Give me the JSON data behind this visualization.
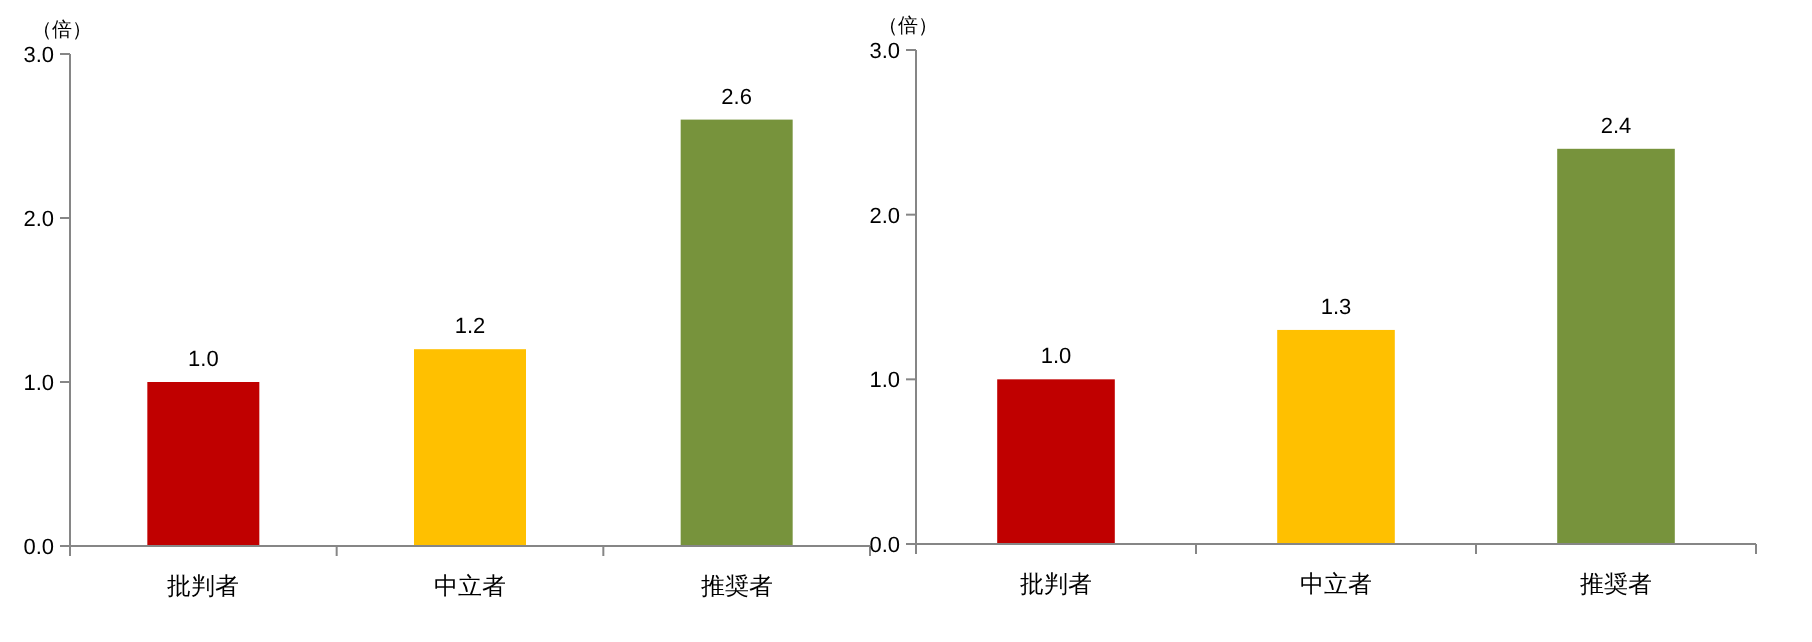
{
  "chart_data": [
    {
      "type": "bar",
      "ylabel": "（倍）",
      "categories": [
        "批判者",
        "中立者",
        "推奨者"
      ],
      "series": [
        {
          "values": [
            1.0,
            1.2,
            2.6
          ],
          "value_labels": [
            "1.0",
            "1.2",
            "2.6"
          ],
          "colors": [
            "#c00000",
            "#ffc000",
            "#77933c"
          ]
        }
      ],
      "ylim": [
        0,
        3
      ],
      "yticks": [
        {
          "value": 0,
          "label": "0.0"
        },
        {
          "value": 1,
          "label": "1.0"
        },
        {
          "value": 2,
          "label": "2.0"
        },
        {
          "value": 3,
          "label": "3.0"
        }
      ],
      "grid": false
    },
    {
      "type": "bar",
      "ylabel": "（倍）",
      "categories": [
        "批判者",
        "中立者",
        "推奨者"
      ],
      "series": [
        {
          "values": [
            1.0,
            1.3,
            2.4
          ],
          "value_labels": [
            "1.0",
            "1.3",
            "2.4"
          ],
          "colors": [
            "#c00000",
            "#ffc000",
            "#77933c"
          ]
        }
      ],
      "ylim": [
        0,
        3
      ],
      "yticks": [
        {
          "value": 0,
          "label": "0.0"
        },
        {
          "value": 1,
          "label": "1.0"
        },
        {
          "value": 2,
          "label": "2.0"
        },
        {
          "value": 3,
          "label": "3.0"
        }
      ],
      "grid": false
    }
  ]
}
